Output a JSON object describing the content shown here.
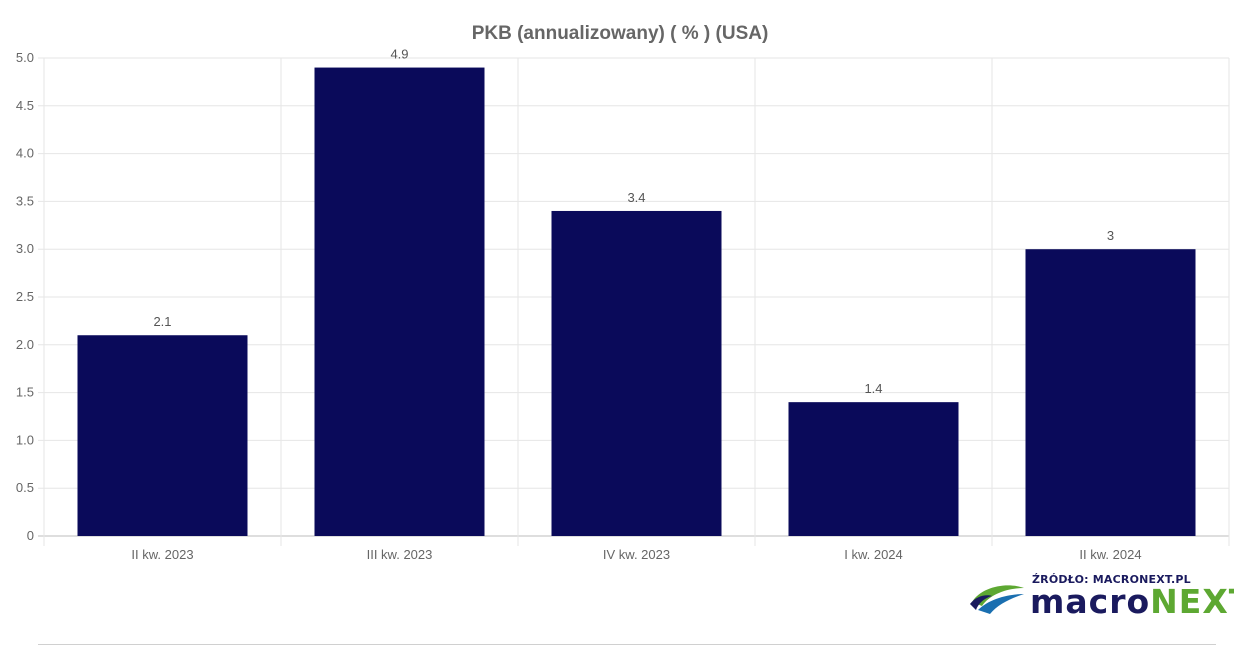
{
  "chart_data": {
    "type": "bar",
    "title": "PKB (annualizowany) ( % ) (USA)",
    "categories": [
      "II kw. 2023",
      "III kw. 2023",
      "IV kw. 2023",
      "I kw. 2024",
      "II kw. 2024"
    ],
    "values": [
      2.1,
      4.9,
      3.4,
      1.4,
      3
    ],
    "value_labels": [
      "2.1",
      "4.9",
      "3.4",
      "1.4",
      "3"
    ],
    "ylim": [
      0,
      5
    ],
    "yticks": [
      "0",
      "0.5",
      "1.0",
      "1.5",
      "2.0",
      "2.5",
      "3.0",
      "3.5",
      "4.0",
      "4.5",
      "5.0"
    ],
    "ytick_values": [
      0,
      0.5,
      1,
      1.5,
      2,
      2.5,
      3,
      3.5,
      4,
      4.5,
      5
    ],
    "bar_color": "#0a0a5a",
    "grid": true
  },
  "logo": {
    "source_text": "ŹRÓDŁO: MACRONEXT.PL",
    "brand_part1": "macro",
    "brand_part2": "NEXT",
    "colors": {
      "navy": "#1a1a5e",
      "green": "#5da832"
    }
  }
}
